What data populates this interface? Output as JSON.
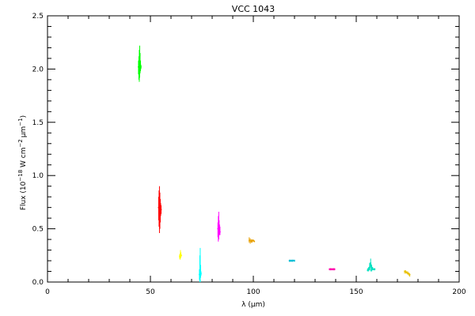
{
  "chart_data": {
    "type": "scatter",
    "title": "VCC 1043",
    "xlabel": "λ (μm)",
    "ylabel_parts": {
      "prefix": "Flux (10",
      "exp1": "−18",
      "mid": " W cm",
      "exp2": "−2",
      "mid2": "μm",
      "exp3": "−1",
      "suffix": ")"
    },
    "xlim": [
      0,
      200
    ],
    "ylim": [
      0,
      2.5
    ],
    "xticks": [
      0,
      50,
      100,
      150,
      200
    ],
    "xtick_labels": [
      "0",
      "50",
      "100",
      "150",
      "200"
    ],
    "yticks": [
      0,
      0.5,
      1.0,
      1.5,
      2.0,
      2.5
    ],
    "ytick_labels": [
      "0.0",
      "0.5",
      "1.0",
      "1.5",
      "2.0",
      "2.5"
    ],
    "grid": false,
    "series": [
      {
        "color": "#00ff00",
        "x": [
          44.2,
          44.4,
          44.6,
          44.8,
          45.0,
          45.2,
          45.4
        ],
        "y_low": [
          1.95,
          1.9,
          1.88,
          1.92,
          1.96,
          1.98,
          2.0
        ],
        "y_high": [
          2.08,
          2.12,
          2.18,
          2.22,
          2.15,
          2.08,
          2.04
        ],
        "y": [
          2.02,
          2.0,
          2.04,
          2.06,
          2.03,
          2.01,
          2.02
        ]
      },
      {
        "color": "#ff0000",
        "x": [
          54.0,
          54.2,
          54.4,
          54.6,
          54.8,
          55.0,
          55.2
        ],
        "y_low": [
          0.58,
          0.52,
          0.46,
          0.5,
          0.56,
          0.62,
          0.64
        ],
        "y_high": [
          0.8,
          0.86,
          0.9,
          0.84,
          0.78,
          0.74,
          0.72
        ],
        "y": [
          0.7,
          0.66,
          0.62,
          0.68,
          0.72,
          0.7,
          0.68
        ]
      },
      {
        "color": "#ffff00",
        "x": [
          64.2,
          64.4,
          64.6,
          64.8,
          65.0
        ],
        "y_low": [
          0.22,
          0.21,
          0.22,
          0.23,
          0.24
        ],
        "y_high": [
          0.26,
          0.27,
          0.3,
          0.28,
          0.26
        ],
        "y": [
          0.24,
          0.25,
          0.26,
          0.25,
          0.25
        ]
      },
      {
        "color": "#00ffff",
        "x": [
          73.8,
          74.0,
          74.2,
          74.4,
          74.6
        ],
        "y_low": [
          0.02,
          0.0,
          0.0,
          0.04,
          0.06
        ],
        "y_high": [
          0.12,
          0.25,
          0.32,
          0.16,
          0.1
        ],
        "y": [
          0.07,
          0.1,
          0.14,
          0.09,
          0.08
        ]
      },
      {
        "color": "#ff00ff",
        "x": [
          82.8,
          83.0,
          83.2,
          83.4,
          83.6,
          83.8
        ],
        "y_low": [
          0.42,
          0.38,
          0.4,
          0.44,
          0.45,
          0.44
        ],
        "y_high": [
          0.56,
          0.62,
          0.66,
          0.58,
          0.54,
          0.52
        ],
        "y": [
          0.5,
          0.52,
          0.55,
          0.5,
          0.48,
          0.47
        ]
      },
      {
        "color": "#e8a000",
        "x": [
          98.0,
          98.5,
          99.0,
          99.5,
          100.0,
          100.5
        ],
        "y_low": [
          0.37,
          0.36,
          0.37,
          0.37,
          0.38,
          0.38
        ],
        "y_high": [
          0.42,
          0.41,
          0.4,
          0.4,
          0.4,
          0.39
        ],
        "y": [
          0.39,
          0.39,
          0.38,
          0.39,
          0.39,
          0.38
        ]
      },
      {
        "color": "#00bcd4",
        "x": [
          117.5,
          118.0,
          118.5,
          119.0,
          119.5,
          120.0
        ],
        "y_low": [
          0.19,
          0.19,
          0.19,
          0.19,
          0.2,
          0.19
        ],
        "y_high": [
          0.21,
          0.21,
          0.21,
          0.21,
          0.21,
          0.21
        ],
        "y": [
          0.2,
          0.2,
          0.2,
          0.2,
          0.2,
          0.2
        ]
      },
      {
        "color": "#ff00aa",
        "x": [
          137.0,
          137.5,
          138.0,
          138.5,
          139.0,
          139.5
        ],
        "y_low": [
          0.11,
          0.11,
          0.11,
          0.11,
          0.11,
          0.11
        ],
        "y_high": [
          0.13,
          0.13,
          0.13,
          0.13,
          0.13,
          0.13
        ],
        "y": [
          0.12,
          0.12,
          0.12,
          0.12,
          0.12,
          0.12
        ]
      },
      {
        "color": "#00e0c0",
        "x": [
          155.5,
          156.0,
          156.5,
          157.0,
          157.5,
          158.0,
          158.5,
          159.0
        ],
        "y_low": [
          0.1,
          0.1,
          0.11,
          0.1,
          0.1,
          0.11,
          0.11,
          0.11
        ],
        "y_high": [
          0.13,
          0.14,
          0.18,
          0.22,
          0.16,
          0.14,
          0.13,
          0.13
        ],
        "y": [
          0.11,
          0.12,
          0.14,
          0.18,
          0.14,
          0.12,
          0.12,
          0.12
        ]
      },
      {
        "color": "#e8c000",
        "x": [
          173.5,
          174.0,
          174.5,
          175.0,
          175.5,
          176.0
        ],
        "y_low": [
          0.08,
          0.08,
          0.08,
          0.07,
          0.06,
          0.05
        ],
        "y_high": [
          0.11,
          0.11,
          0.1,
          0.1,
          0.09,
          0.08
        ],
        "y": [
          0.1,
          0.1,
          0.09,
          0.08,
          0.08,
          0.07
        ]
      }
    ]
  }
}
